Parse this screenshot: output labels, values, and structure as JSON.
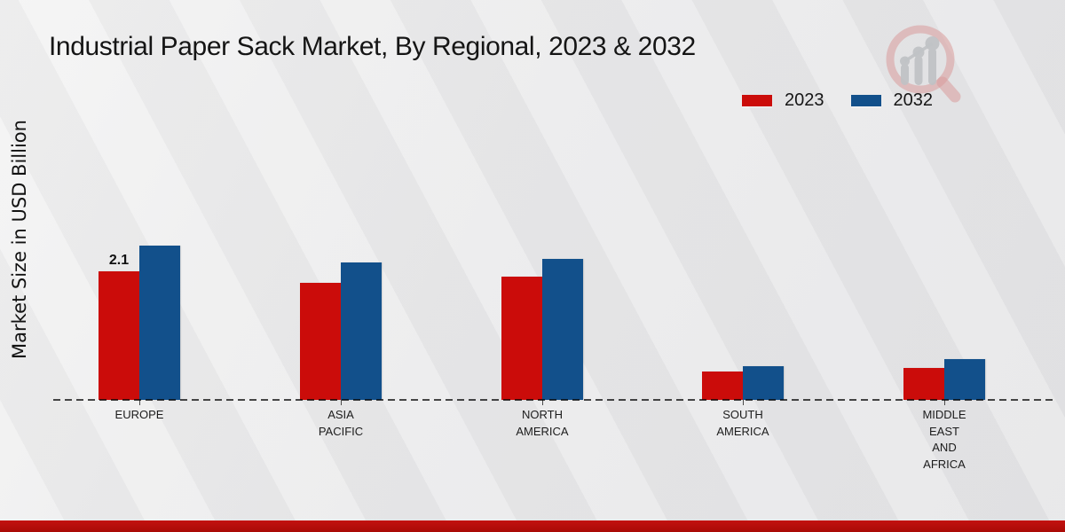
{
  "branding": {
    "logo_icon": "magnifier-growth-chart-logo-icon",
    "bottom_bar_color": "#b40d08"
  },
  "chart_data": {
    "type": "bar",
    "title": "Industrial Paper Sack Market, By Regional, 2023 & 2032",
    "ylabel": "Market Size in USD Billion",
    "xlabel": "",
    "unit": "USD Billion",
    "categories": [
      "EUROPE",
      "ASIA PACIFIC",
      "NORTH AMERICA",
      "SOUTH AMERICA",
      "MIDDLE EAST AND AFRICA"
    ],
    "categories_display": [
      "EUROPE",
      "ASIA\nPACIFIC",
      "NORTH\nAMERICA",
      "SOUTH\nAMERICA",
      "MIDDLE\nEAST\nAND\nAFRICA"
    ],
    "series": [
      {
        "name": "2023",
        "color": "#cb0c0a",
        "values": [
          2.1,
          1.92,
          2.02,
          0.46,
          0.52
        ],
        "value_labels": [
          "2.1",
          "",
          "",
          "",
          ""
        ]
      },
      {
        "name": "2032",
        "color": "#12508b",
        "values": [
          2.52,
          2.25,
          2.31,
          0.55,
          0.67
        ],
        "value_labels": [
          "",
          "",
          "",
          "",
          ""
        ]
      }
    ],
    "ylim": [
      0,
      4
    ],
    "legend_position": "top-right",
    "gridlines": false,
    "baseline_style": "dashed"
  }
}
